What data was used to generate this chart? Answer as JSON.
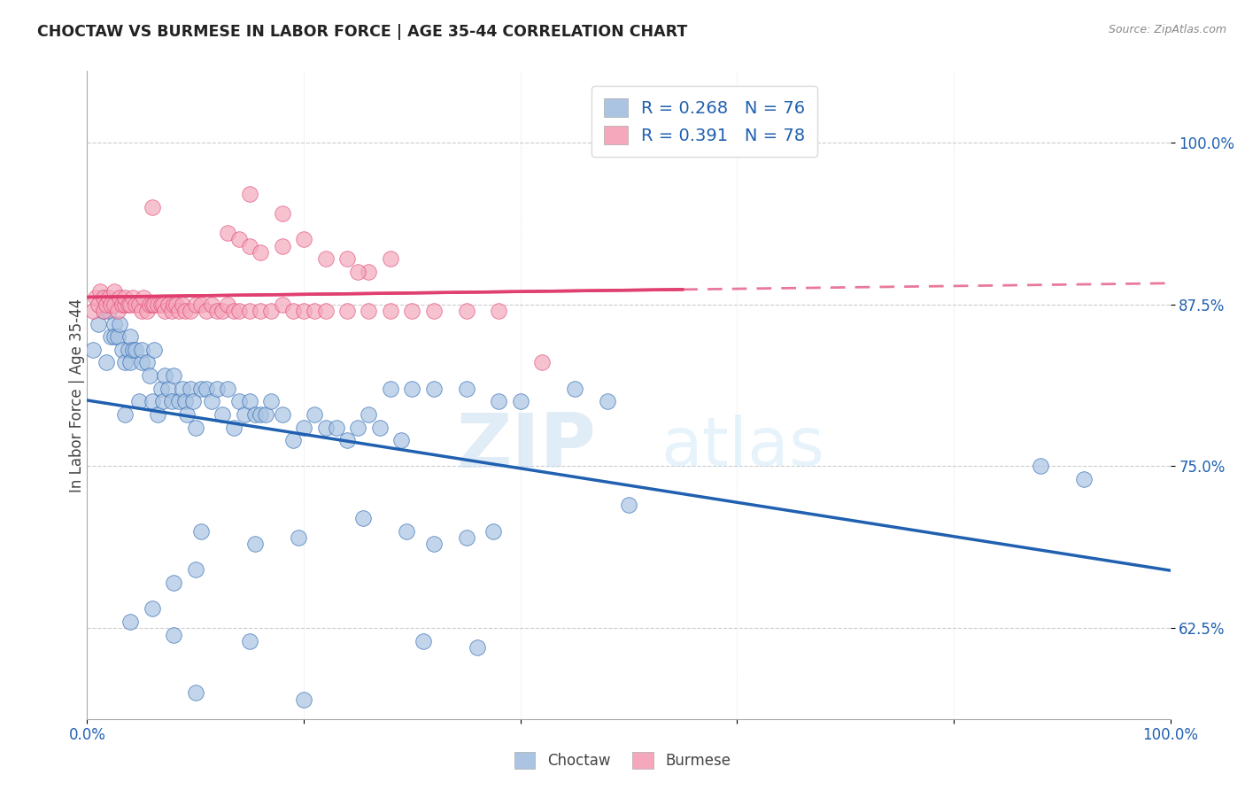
{
  "title": "CHOCTAW VS BURMESE IN LABOR FORCE | AGE 35-44 CORRELATION CHART",
  "source": "Source: ZipAtlas.com",
  "ylabel": "In Labor Force | Age 35-44",
  "choctaw_R": 0.268,
  "choctaw_N": 76,
  "burmese_R": 0.391,
  "burmese_N": 78,
  "choctaw_color": "#aac4e2",
  "burmese_color": "#f5a8bc",
  "choctaw_line_color": "#2060b0",
  "burmese_line_color": "#e04070",
  "background_color": "#ffffff",
  "grid_color": "#cccccc",
  "watermark_zip": "ZIP",
  "watermark_atlas": "atlas",
  "xlim": [
    0.0,
    1.0
  ],
  "ylim": [
    0.555,
    1.055
  ],
  "ytick_positions": [
    0.625,
    0.75,
    0.875,
    1.0
  ],
  "yticklabels": [
    "62.5%",
    "75.0%",
    "87.5%",
    "100.0%"
  ],
  "choctaw_x": [
    0.005,
    0.01,
    0.015,
    0.015,
    0.018,
    0.02,
    0.022,
    0.025,
    0.025,
    0.028,
    0.03,
    0.032,
    0.035,
    0.035,
    0.038,
    0.04,
    0.04,
    0.042,
    0.045,
    0.048,
    0.05,
    0.05,
    0.055,
    0.058,
    0.06,
    0.062,
    0.065,
    0.068,
    0.07,
    0.072,
    0.075,
    0.078,
    0.08,
    0.085,
    0.088,
    0.09,
    0.092,
    0.095,
    0.098,
    0.1,
    0.105,
    0.11,
    0.115,
    0.12,
    0.125,
    0.13,
    0.135,
    0.14,
    0.145,
    0.15,
    0.155,
    0.16,
    0.165,
    0.17,
    0.18,
    0.19,
    0.2,
    0.21,
    0.22,
    0.23,
    0.24,
    0.25,
    0.26,
    0.27,
    0.28,
    0.29,
    0.3,
    0.32,
    0.35,
    0.38,
    0.4,
    0.45,
    0.48,
    0.5,
    0.88,
    0.92
  ],
  "choctaw_y": [
    0.84,
    0.86,
    0.87,
    0.88,
    0.83,
    0.87,
    0.85,
    0.86,
    0.85,
    0.85,
    0.86,
    0.84,
    0.79,
    0.83,
    0.84,
    0.83,
    0.85,
    0.84,
    0.84,
    0.8,
    0.83,
    0.84,
    0.83,
    0.82,
    0.8,
    0.84,
    0.79,
    0.81,
    0.8,
    0.82,
    0.81,
    0.8,
    0.82,
    0.8,
    0.81,
    0.8,
    0.79,
    0.81,
    0.8,
    0.78,
    0.81,
    0.81,
    0.8,
    0.81,
    0.79,
    0.81,
    0.78,
    0.8,
    0.79,
    0.8,
    0.79,
    0.79,
    0.79,
    0.8,
    0.79,
    0.77,
    0.78,
    0.79,
    0.78,
    0.78,
    0.77,
    0.78,
    0.79,
    0.78,
    0.81,
    0.77,
    0.81,
    0.81,
    0.81,
    0.8,
    0.8,
    0.81,
    0.8,
    0.72,
    0.75,
    0.74
  ],
  "burmese_x": [
    0.005,
    0.008,
    0.01,
    0.012,
    0.015,
    0.015,
    0.018,
    0.02,
    0.022,
    0.025,
    0.025,
    0.028,
    0.03,
    0.032,
    0.035,
    0.035,
    0.038,
    0.04,
    0.042,
    0.045,
    0.048,
    0.05,
    0.052,
    0.055,
    0.058,
    0.06,
    0.062,
    0.065,
    0.068,
    0.07,
    0.072,
    0.075,
    0.078,
    0.08,
    0.082,
    0.085,
    0.088,
    0.09,
    0.095,
    0.1,
    0.105,
    0.11,
    0.115,
    0.12,
    0.125,
    0.13,
    0.135,
    0.14,
    0.15,
    0.16,
    0.17,
    0.18,
    0.19,
    0.2,
    0.21,
    0.22,
    0.24,
    0.26,
    0.28,
    0.3,
    0.32,
    0.35,
    0.38,
    0.13,
    0.14,
    0.15,
    0.16,
    0.18,
    0.2,
    0.22,
    0.24,
    0.26,
    0.15,
    0.18,
    0.25,
    0.28,
    0.06,
    0.42
  ],
  "burmese_y": [
    0.87,
    0.88,
    0.875,
    0.885,
    0.87,
    0.88,
    0.875,
    0.88,
    0.875,
    0.875,
    0.885,
    0.87,
    0.88,
    0.875,
    0.875,
    0.88,
    0.875,
    0.875,
    0.88,
    0.875,
    0.875,
    0.87,
    0.88,
    0.87,
    0.875,
    0.875,
    0.875,
    0.875,
    0.875,
    0.875,
    0.87,
    0.875,
    0.87,
    0.875,
    0.875,
    0.87,
    0.875,
    0.87,
    0.87,
    0.875,
    0.875,
    0.87,
    0.875,
    0.87,
    0.87,
    0.875,
    0.87,
    0.87,
    0.87,
    0.87,
    0.87,
    0.875,
    0.87,
    0.87,
    0.87,
    0.87,
    0.87,
    0.87,
    0.87,
    0.87,
    0.87,
    0.87,
    0.87,
    0.93,
    0.925,
    0.92,
    0.915,
    0.92,
    0.925,
    0.91,
    0.91,
    0.9,
    0.96,
    0.945,
    0.9,
    0.91,
    0.95,
    0.83
  ],
  "choctaw_extra_x": [
    0.105,
    0.155,
    0.195,
    0.255,
    0.295,
    0.32,
    0.35,
    0.375,
    0.1,
    0.08,
    0.06,
    0.04
  ],
  "choctaw_extra_y": [
    0.7,
    0.69,
    0.695,
    0.71,
    0.7,
    0.69,
    0.695,
    0.7,
    0.67,
    0.66,
    0.64,
    0.63
  ],
  "choctaw_low_x": [
    0.08,
    0.15,
    0.31,
    0.36,
    0.1,
    0.2
  ],
  "choctaw_low_y": [
    0.62,
    0.615,
    0.615,
    0.61,
    0.575,
    0.57
  ]
}
